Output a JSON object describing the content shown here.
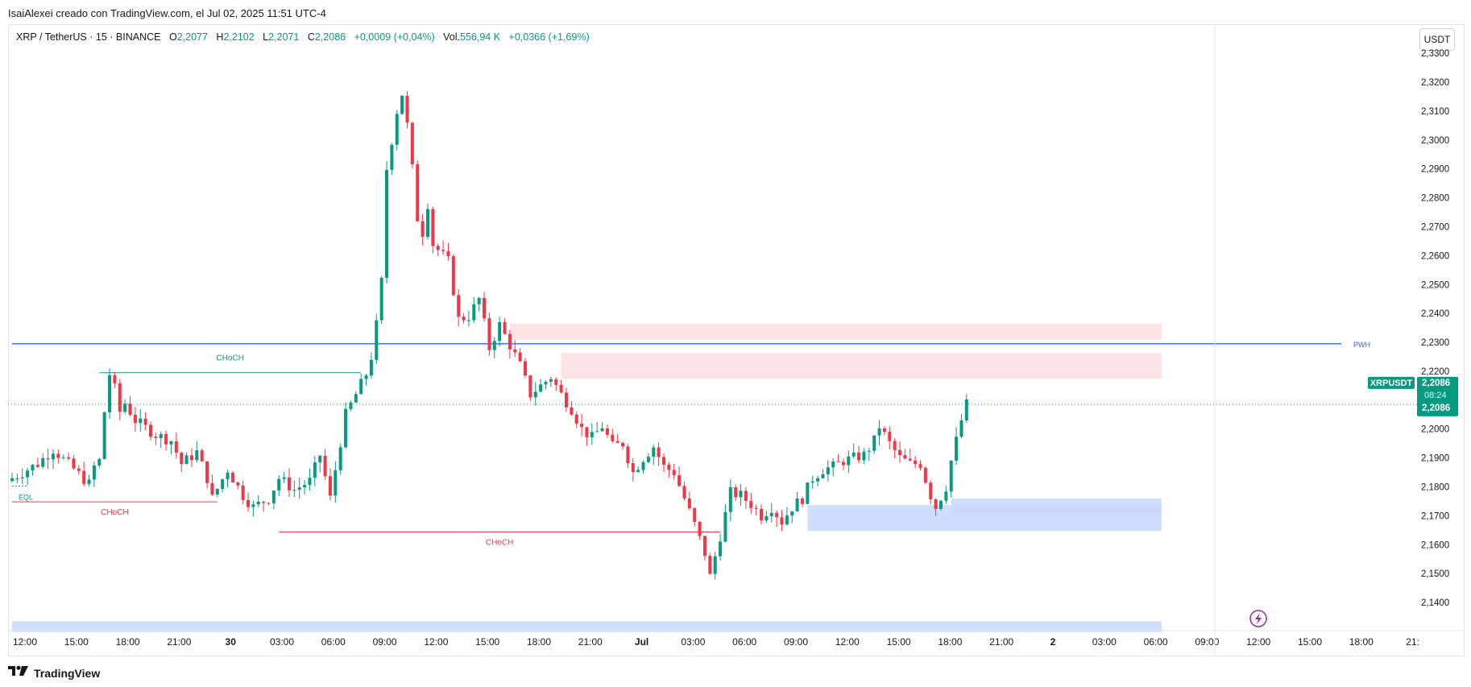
{
  "header": {
    "text": "IsaiAlexei creado con TradingView.com, el Jul 02, 2025 11:51 UTC-4"
  },
  "legend": {
    "symbol": "XRP / TetherUS · 15 · BINANCE",
    "o_label": "O",
    "o_value": "2,2077",
    "h_label": "H",
    "h_value": "2,2102",
    "l_label": "L",
    "l_value": "2,2071",
    "c_label": "C",
    "c_value": "2,2086",
    "change": "+0,0009 (+0,04%)",
    "vol_label": "Vol.",
    "vol_value": "556,94 K",
    "vol_change": "+0,0366 (+1,69%)"
  },
  "currency": "USDT",
  "footer": {
    "brand": "TradingView",
    "logo_icon": "tradingview-logo-icon"
  },
  "colors": {
    "up": "#089981",
    "down": "#f23645",
    "structure": "#2962ff",
    "supply": "#fde2e4",
    "demand": "#c7d8fb"
  },
  "chart_data": {
    "type": "candlestick",
    "title": "XRP / TetherUS · 15 · BINANCE",
    "ylim": [
      2.1325,
      2.3345
    ],
    "y_ticks": [
      2.14,
      2.15,
      2.16,
      2.17,
      2.18,
      2.19,
      2.2,
      2.21,
      2.22,
      2.23,
      2.24,
      2.25,
      2.26,
      2.27,
      2.28,
      2.29,
      2.3,
      2.31,
      2.32,
      2.33
    ],
    "y_tick_labels": [
      "2,1400",
      "2,1500",
      "2,1600",
      "2,1700",
      "2,1800",
      "2,1900",
      "2,2000",
      "2,2100",
      "2,2200",
      "2,2300",
      "2,2400",
      "2,2500",
      "2,2600",
      "2,2700",
      "2,2800",
      "2,2900",
      "2,3000",
      "2,3100",
      "2,3200",
      "2,3300"
    ],
    "x_tick_labels": [
      "12:00",
      "15:00",
      "18:00",
      "21:00",
      "30",
      "03:00",
      "06:00",
      "09:00",
      "12:00",
      "15:00",
      "18:00",
      "21:00",
      "Jul",
      "03:00",
      "06:00",
      "09:00",
      "12:00",
      "15:00",
      "18:00",
      "21:00",
      "2",
      "03:00",
      "06:00",
      "09:00",
      "12:00",
      "15:00",
      "18:00",
      "21:"
    ],
    "x_tick_bold": [
      4,
      12,
      20
    ],
    "x_index_range": [
      0,
      186
    ],
    "candles_price_path": [
      [
        0,
        2.183
      ],
      [
        5,
        2.188
      ],
      [
        8,
        2.193
      ],
      [
        15,
        2.181
      ],
      [
        16,
        2.187
      ],
      [
        17,
        2.189
      ],
      [
        18,
        2.206
      ],
      [
        19,
        2.219
      ],
      [
        20,
        2.214
      ],
      [
        21,
        2.206
      ],
      [
        22,
        2.209
      ],
      [
        24,
        2.203
      ],
      [
        28,
        2.198
      ],
      [
        31,
        2.196
      ],
      [
        33,
        2.188
      ],
      [
        36,
        2.192
      ],
      [
        38,
        2.183
      ],
      [
        39,
        2.176
      ],
      [
        42,
        2.186
      ],
      [
        45,
        2.177
      ],
      [
        47,
        2.173
      ],
      [
        50,
        2.176
      ],
      [
        52,
        2.183
      ],
      [
        55,
        2.179
      ],
      [
        58,
        2.182
      ],
      [
        60,
        2.191
      ],
      [
        62,
        2.176
      ],
      [
        63,
        2.186
      ],
      [
        65,
        2.205
      ],
      [
        69,
        2.219
      ],
      [
        70,
        2.225
      ],
      [
        71,
        2.236
      ],
      [
        72,
        2.251
      ],
      [
        73,
        2.29
      ],
      [
        75,
        2.31
      ],
      [
        76,
        2.316
      ],
      [
        77,
        2.305
      ],
      [
        78,
        2.29
      ],
      [
        79,
        2.273
      ],
      [
        80,
        2.268
      ],
      [
        81,
        2.278
      ],
      [
        82,
        2.264
      ],
      [
        85,
        2.258
      ],
      [
        87,
        2.238
      ],
      [
        89,
        2.239
      ],
      [
        91,
        2.245
      ],
      [
        93,
        2.228
      ],
      [
        95,
        2.236
      ],
      [
        99,
        2.222
      ],
      [
        101,
        2.212
      ],
      [
        103,
        2.215
      ],
      [
        105,
        2.218
      ],
      [
        107,
        2.212
      ],
      [
        109,
        2.207
      ],
      [
        111,
        2.2
      ],
      [
        113,
        2.197
      ],
      [
        115,
        2.201
      ],
      [
        117,
        2.194
      ],
      [
        119,
        2.195
      ],
      [
        121,
        2.185
      ],
      [
        123,
        2.19
      ],
      [
        125,
        2.194
      ],
      [
        127,
        2.187
      ],
      [
        129,
        2.185
      ],
      [
        131,
        2.176
      ],
      [
        133,
        2.167
      ],
      [
        135,
        2.157
      ],
      [
        136,
        2.149
      ],
      [
        138,
        2.163
      ],
      [
        140,
        2.178
      ],
      [
        142,
        2.177
      ],
      [
        144,
        2.174
      ],
      [
        146,
        2.17
      ],
      [
        148,
        2.173
      ],
      [
        150,
        2.168
      ],
      [
        152,
        2.173
      ],
      [
        154,
        2.176
      ],
      [
        156,
        2.183
      ],
      [
        158,
        2.186
      ],
      [
        160,
        2.187
      ],
      [
        162,
        2.189
      ],
      [
        164,
        2.19
      ],
      [
        166,
        2.191
      ],
      [
        168,
        2.196
      ],
      [
        169,
        2.201
      ],
      [
        171,
        2.195
      ],
      [
        173,
        2.19
      ],
      [
        175,
        2.188
      ],
      [
        177,
        2.188
      ],
      [
        179,
        2.177
      ],
      [
        180,
        2.173
      ],
      [
        182,
        2.18
      ],
      [
        183,
        2.189
      ],
      [
        185,
        2.203
      ],
      [
        186,
        2.2086
      ]
    ],
    "last_price": 2.2086,
    "last_price_label": "2,2086",
    "symbol_tag": "XRPUSDT",
    "countdown": "08:24",
    "levels": [
      {
        "name": "PWH",
        "price": 2.2295,
        "x_start": 0,
        "x_end": 200,
        "color": "#2962ff"
      },
      {
        "name": "EQL",
        "price": 2.1803,
        "x_start": 0,
        "x_end": 3,
        "color": "#089981"
      }
    ],
    "choch": [
      {
        "label": "CHoCH",
        "price": 2.2195,
        "x_start": 17,
        "x_end": 68,
        "color": "#089981"
      },
      {
        "label": "CHoCH",
        "price": 2.1748,
        "x_start": 0,
        "x_end": 40,
        "color": "#f23645"
      },
      {
        "label": "CHoCH",
        "price": 2.1644,
        "x_start": 52,
        "x_end": 138,
        "color": "#f23645"
      }
    ],
    "zones": [
      {
        "kind": "supply",
        "y_top": 2.2365,
        "y_bottom": 2.2308,
        "x_start": 97,
        "x_end": 224
      },
      {
        "kind": "supply",
        "y_top": 2.2263,
        "y_bottom": 2.2174,
        "x_start": 107,
        "x_end": 224
      },
      {
        "kind": "demand",
        "y_top": 2.1737,
        "y_bottom": 2.1647,
        "x_start": 155,
        "x_end": 224
      },
      {
        "kind": "demand",
        "y_top": 2.176,
        "y_bottom": 2.1705,
        "x_start": 183,
        "x_end": 224
      },
      {
        "kind": "demand",
        "y_top": 2.1335,
        "y_bottom": 2.1298,
        "x_start": 0,
        "x_end": 224
      }
    ],
    "marker_icon": "lightning-icon"
  }
}
